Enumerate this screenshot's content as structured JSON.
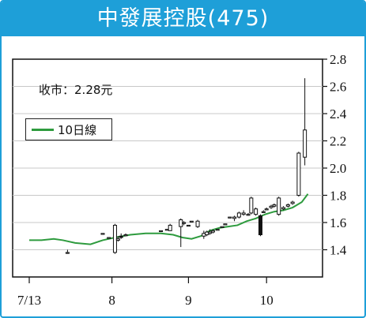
{
  "chart_data": {
    "type": "candlestick",
    "title": "中發展控股(475)",
    "annotation": {
      "label": "收市：",
      "value": "2.28",
      "unit": "元"
    },
    "legend": [
      {
        "name": "10日線",
        "color": "#2e9b3e"
      }
    ],
    "xticks": [
      "7/13",
      "8",
      "9",
      "10"
    ],
    "ylim": [
      1.2,
      2.8
    ],
    "yticks": [
      "1.4",
      "1.6",
      "1.8",
      "2.0",
      "2.2",
      "2.4",
      "2.6",
      "2.8"
    ],
    "ma10": [
      [
        0,
        1.47
      ],
      [
        8,
        1.47
      ],
      [
        16,
        1.48
      ],
      [
        22,
        1.47
      ],
      [
        30,
        1.45
      ],
      [
        40,
        1.44
      ],
      [
        48,
        1.47
      ],
      [
        56,
        1.49
      ],
      [
        66,
        1.51
      ],
      [
        76,
        1.52
      ],
      [
        86,
        1.52
      ],
      [
        94,
        1.51
      ],
      [
        100,
        1.49
      ],
      [
        106,
        1.48
      ],
      [
        112,
        1.5
      ],
      [
        118,
        1.54
      ],
      [
        124,
        1.56
      ],
      [
        130,
        1.57
      ],
      [
        136,
        1.58
      ],
      [
        142,
        1.61
      ],
      [
        148,
        1.63
      ],
      [
        154,
        1.66
      ],
      [
        160,
        1.68
      ],
      [
        166,
        1.69
      ],
      [
        172,
        1.71
      ],
      [
        178,
        1.75
      ],
      [
        182,
        1.81
      ]
    ],
    "candles": [
      {
        "x": 25,
        "o": 1.38,
        "h": 1.4,
        "l": 1.37,
        "c": 1.38
      },
      {
        "x": 48,
        "o": 1.52,
        "h": 1.52,
        "l": 1.52,
        "c": 1.52
      },
      {
        "x": 52,
        "o": 1.49,
        "h": 1.49,
        "l": 1.49,
        "c": 1.49
      },
      {
        "x": 56,
        "o": 1.38,
        "h": 1.59,
        "l": 1.37,
        "c": 1.58
      },
      {
        "x": 58,
        "o": 1.47,
        "h": 1.5,
        "l": 1.46,
        "c": 1.48
      },
      {
        "x": 60,
        "o": 1.5,
        "h": 1.52,
        "l": 1.48,
        "c": 1.49
      },
      {
        "x": 63,
        "o": 1.51,
        "h": 1.52,
        "l": 1.5,
        "c": 1.51
      },
      {
        "x": 86,
        "o": 1.54,
        "h": 1.54,
        "l": 1.54,
        "c": 1.54
      },
      {
        "x": 90,
        "o": 1.55,
        "h": 1.55,
        "l": 1.55,
        "c": 1.55
      },
      {
        "x": 92,
        "o": 1.54,
        "h": 1.59,
        "l": 1.54,
        "c": 1.58
      },
      {
        "x": 99,
        "o": 1.57,
        "h": 1.63,
        "l": 1.42,
        "c": 1.62
      },
      {
        "x": 101,
        "o": 1.6,
        "h": 1.61,
        "l": 1.58,
        "c": 1.6
      },
      {
        "x": 104,
        "o": 1.58,
        "h": 1.58,
        "l": 1.58,
        "c": 1.58
      },
      {
        "x": 106,
        "o": 1.61,
        "h": 1.61,
        "l": 1.61,
        "c": 1.61
      },
      {
        "x": 110,
        "o": 1.57,
        "h": 1.62,
        "l": 1.56,
        "c": 1.61
      },
      {
        "x": 114,
        "o": 1.5,
        "h": 1.54,
        "l": 1.48,
        "c": 1.52
      },
      {
        "x": 116,
        "o": 1.51,
        "h": 1.54,
        "l": 1.5,
        "c": 1.53
      },
      {
        "x": 118,
        "o": 1.52,
        "h": 1.55,
        "l": 1.51,
        "c": 1.53
      },
      {
        "x": 120,
        "o": 1.53,
        "h": 1.55,
        "l": 1.52,
        "c": 1.54
      },
      {
        "x": 123,
        "o": 1.55,
        "h": 1.55,
        "l": 1.55,
        "c": 1.55
      },
      {
        "x": 126,
        "o": 1.57,
        "h": 1.57,
        "l": 1.57,
        "c": 1.57
      },
      {
        "x": 128,
        "o": 1.59,
        "h": 1.59,
        "l": 1.59,
        "c": 1.59
      },
      {
        "x": 131,
        "o": 1.64,
        "h": 1.64,
        "l": 1.64,
        "c": 1.64
      },
      {
        "x": 134,
        "o": 1.63,
        "h": 1.65,
        "l": 1.61,
        "c": 1.64
      },
      {
        "x": 137,
        "o": 1.64,
        "h": 1.68,
        "l": 1.63,
        "c": 1.67
      },
      {
        "x": 140,
        "o": 1.66,
        "h": 1.69,
        "l": 1.65,
        "c": 1.67
      },
      {
        "x": 143,
        "o": 1.66,
        "h": 1.67,
        "l": 1.65,
        "c": 1.66
      },
      {
        "x": 145,
        "o": 1.67,
        "h": 1.79,
        "l": 1.66,
        "c": 1.78
      },
      {
        "x": 148,
        "o": 1.66,
        "h": 1.71,
        "l": 1.65,
        "c": 1.7
      },
      {
        "x": 151,
        "o": 1.65,
        "h": 1.66,
        "l": 1.5,
        "c": 1.51
      },
      {
        "x": 153,
        "o": 1.68,
        "h": 1.69,
        "l": 1.67,
        "c": 1.68
      },
      {
        "x": 155,
        "o": 1.7,
        "h": 1.71,
        "l": 1.69,
        "c": 1.7
      },
      {
        "x": 158,
        "o": 1.71,
        "h": 1.73,
        "l": 1.7,
        "c": 1.72
      },
      {
        "x": 160,
        "o": 1.72,
        "h": 1.74,
        "l": 1.71,
        "c": 1.73
      },
      {
        "x": 163,
        "o": 1.66,
        "h": 1.79,
        "l": 1.65,
        "c": 1.78
      },
      {
        "x": 166,
        "o": 1.7,
        "h": 1.72,
        "l": 1.69,
        "c": 1.71
      },
      {
        "x": 169,
        "o": 1.72,
        "h": 1.74,
        "l": 1.71,
        "c": 1.73
      },
      {
        "x": 172,
        "o": 1.74,
        "h": 1.76,
        "l": 1.73,
        "c": 1.75
      },
      {
        "x": 176,
        "o": 1.8,
        "h": 2.12,
        "l": 1.79,
        "c": 2.11
      },
      {
        "x": 180,
        "o": 2.08,
        "h": 2.66,
        "l": 2.02,
        "c": 2.28
      }
    ]
  }
}
